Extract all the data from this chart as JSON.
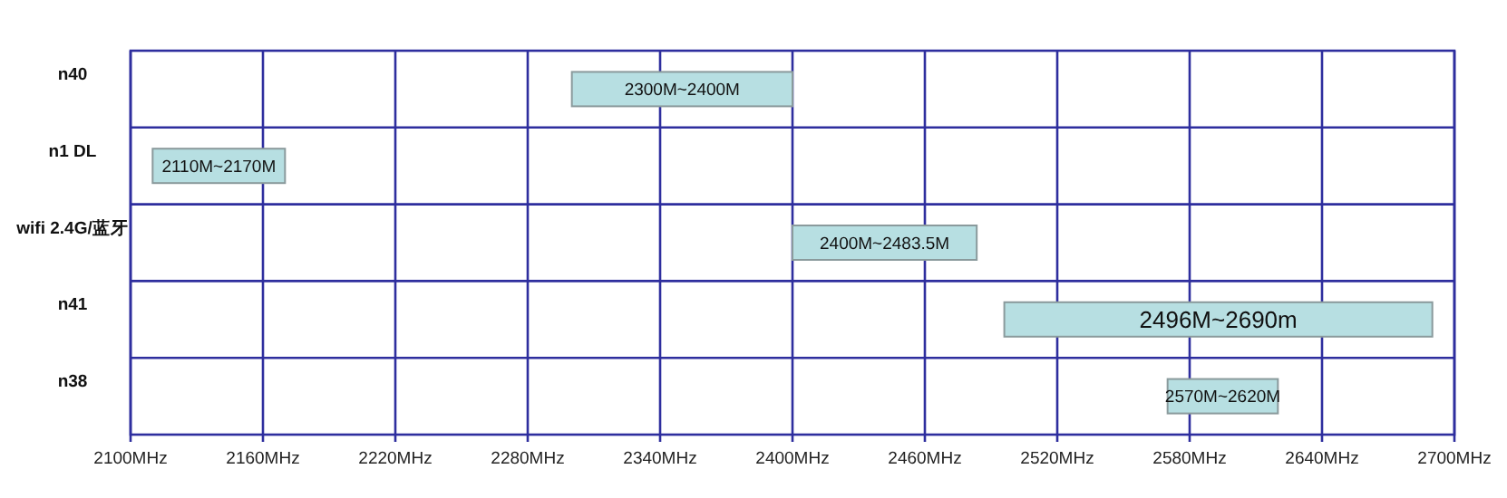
{
  "chart_data": {
    "type": "bar",
    "orientation": "horizontal",
    "categories": [
      "n40",
      "n1 DL",
      "wifi 2.4G/蓝牙",
      "n41",
      "n38"
    ],
    "base": [
      2300,
      2110,
      2400,
      2496,
      2570
    ],
    "values": [
      100,
      60,
      83.5,
      194,
      50
    ],
    "annotations": [
      "2300M~2400M",
      "2110M~2170M",
      "2400M~2483.5M",
      "2496M~2690m",
      "2570M~2620M"
    ],
    "color": "#b7dfe2",
    "xlim": [
      2100,
      2700
    ],
    "xticks": [
      {
        "value": 2100,
        "label": "2100MHz"
      },
      {
        "value": 2160,
        "label": "2160MHz"
      },
      {
        "value": 2220,
        "label": "2220MHz"
      },
      {
        "value": 2280,
        "label": "2280MHz"
      },
      {
        "value": 2340,
        "label": "2340MHz"
      },
      {
        "value": 2400,
        "label": "2400MHz"
      },
      {
        "value": 2460,
        "label": "2460MHz"
      },
      {
        "value": 2520,
        "label": "2520MHz"
      },
      {
        "value": 2580,
        "label": "2580MHz"
      },
      {
        "value": 2640,
        "label": "2640MHz"
      },
      {
        "value": 2700,
        "label": "2700MHz"
      }
    ],
    "grid": true
  }
}
